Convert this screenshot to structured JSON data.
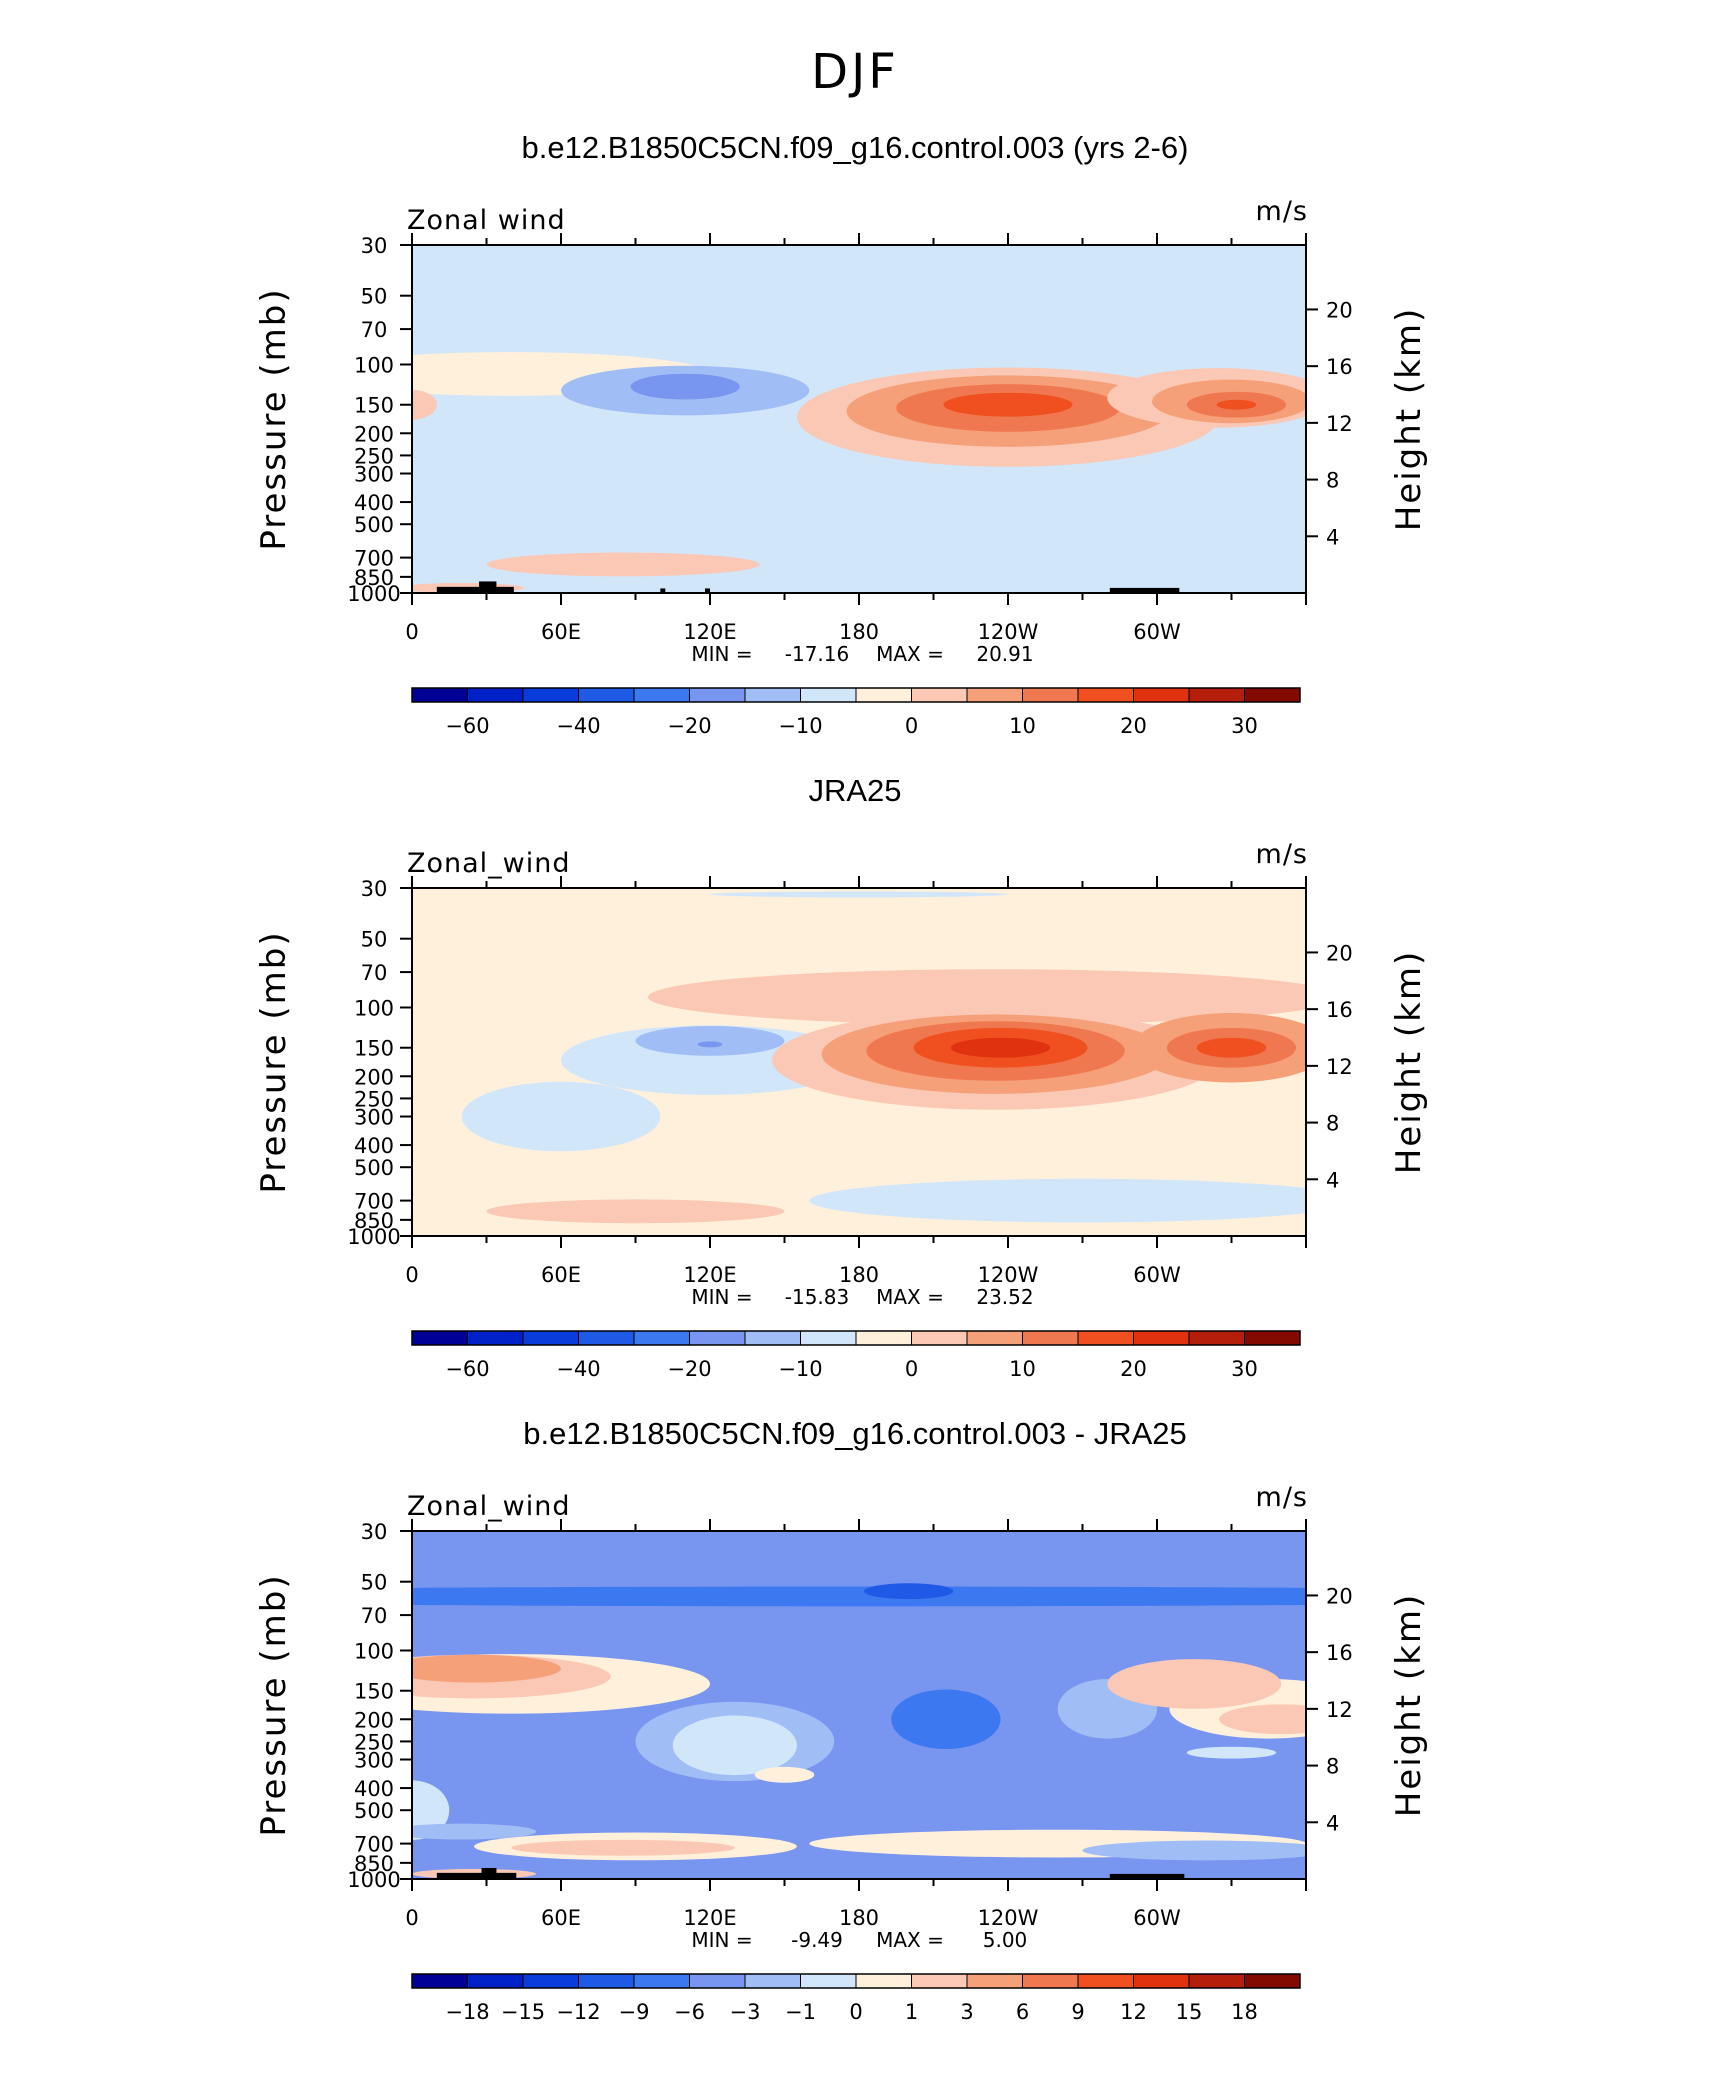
{
  "figure_title": "DJF",
  "colors": {
    "full_palette": [
      "#000096",
      "#0020c8",
      "#0a3cdc",
      "#1e5ae6",
      "#3c78f0",
      "#7896f0",
      "#a0bef5",
      "#d2e6fa",
      "#fff0dc",
      "#fac8b4",
      "#f5a078",
      "#f07850",
      "#f05020",
      "#e13210",
      "#b41e0a",
      "#820a00"
    ],
    "diff_palette": [
      "#000096",
      "#0020c8",
      "#0a3cdc",
      "#1e5ae6",
      "#3c78f0",
      "#7896f0",
      "#a0bef5",
      "#d2e6fa",
      "#fff0dc",
      "#fac8b4",
      "#f5a078",
      "#f07850",
      "#f05020",
      "#e13210",
      "#b41e0a",
      "#820a00"
    ]
  },
  "chart_data": [
    {
      "type": "heatmap",
      "title": "b.e12.B1850C5CN.f09_g16.control.003 (yrs 2-6)",
      "left_label": "Zonal wind",
      "units": "m/s",
      "ylabel": "Pressure  (mb)",
      "ylabel_right": "Height  (km)",
      "x_ticks": [
        "0",
        "60E",
        "120E",
        "180",
        "120W",
        "60W"
      ],
      "y_ticks": [
        "30",
        "50",
        "70",
        "100",
        "150",
        "200",
        "250",
        "300",
        "400",
        "500",
        "700",
        "850",
        "1000"
      ],
      "height_ticks": [
        "20",
        "16",
        "12",
        "8",
        "4"
      ],
      "stats": {
        "min_label": "MIN =",
        "min": "-17.16",
        "max_label": "MAX =",
        "max": "20.91"
      },
      "colorbar_labels": [
        "−60",
        "−40",
        "−20",
        "−10",
        "0",
        "10",
        "20",
        "30"
      ],
      "palette": "full",
      "background_level": 7,
      "blobs": [
        {
          "lon": 180,
          "p": 40,
          "rx": 360,
          "rlogp": 0.22,
          "level": 7
        },
        {
          "lon": 40,
          "p": 110,
          "rx": 80,
          "rlogp": 0.22,
          "level": 8
        },
        {
          "lon": 0,
          "p": 150,
          "rx": 10,
          "rlogp": 0.15,
          "level": 9
        },
        {
          "lon": 110,
          "p": 130,
          "rx": 50,
          "rlogp": 0.25,
          "level": 6
        },
        {
          "lon": 110,
          "p": 125,
          "rx": 22,
          "rlogp": 0.13,
          "level": 5
        },
        {
          "lon": 50,
          "p": 300,
          "rx": 40,
          "rlogp": 0.35,
          "level": 7
        },
        {
          "lon": 240,
          "p": 170,
          "rx": 85,
          "rlogp": 0.5,
          "level": 9
        },
        {
          "lon": 240,
          "p": 160,
          "rx": 65,
          "rlogp": 0.36,
          "level": 10
        },
        {
          "lon": 240,
          "p": 155,
          "rx": 45,
          "rlogp": 0.24,
          "level": 11
        },
        {
          "lon": 240,
          "p": 150,
          "rx": 26,
          "rlogp": 0.12,
          "level": 12
        },
        {
          "lon": 325,
          "p": 140,
          "rx": 45,
          "rlogp": 0.3,
          "level": 9
        },
        {
          "lon": 330,
          "p": 145,
          "rx": 32,
          "rlogp": 0.22,
          "level": 10
        },
        {
          "lon": 332,
          "p": 150,
          "rx": 20,
          "rlogp": 0.13,
          "level": 11
        },
        {
          "lon": 332,
          "p": 150,
          "rx": 8,
          "rlogp": 0.05,
          "level": 12
        },
        {
          "lon": 85,
          "p": 750,
          "rx": 55,
          "rlogp": 0.12,
          "level": 9
        },
        {
          "lon": 20,
          "p": 950,
          "rx": 25,
          "rlogp": 0.05,
          "level": 9
        },
        {
          "lon": 220,
          "p": 900,
          "rx": 60,
          "rlogp": 0.07,
          "level": 7
        }
      ],
      "topography": [
        {
          "lon0": 10,
          "lon1": 41,
          "pmin": 940
        },
        {
          "lon0": 27,
          "lon1": 34,
          "pmin": 890
        },
        {
          "lon0": 100,
          "lon1": 102,
          "pmin": 955
        },
        {
          "lon0": 118,
          "lon1": 120,
          "pmin": 955
        },
        {
          "lon0": 281,
          "lon1": 309,
          "pmin": 950
        }
      ]
    },
    {
      "type": "heatmap",
      "title": "JRA25",
      "left_label": "Zonal_wind",
      "units": "m/s",
      "ylabel": "Pressure  (mb)",
      "ylabel_right": "Height  (km)",
      "x_ticks": [
        "0",
        "60E",
        "120E",
        "180",
        "120W",
        "60W"
      ],
      "y_ticks": [
        "30",
        "50",
        "70",
        "100",
        "150",
        "200",
        "250",
        "300",
        "400",
        "500",
        "700",
        "850",
        "1000"
      ],
      "height_ticks": [
        "20",
        "16",
        "12",
        "8",
        "4"
      ],
      "stats": {
        "min_label": "MIN =",
        "min": "-15.83",
        "max_label": "MAX =",
        "max": "23.52"
      },
      "colorbar_labels": [
        "−60",
        "−40",
        "−20",
        "−10",
        "0",
        "10",
        "20",
        "30"
      ],
      "palette": "full",
      "background_level": 8,
      "blobs": [
        {
          "lon": 180,
          "p": 32,
          "rx": 60,
          "rlogp": 0.03,
          "level": 7
        },
        {
          "lon": 60,
          "p": 300,
          "rx": 40,
          "rlogp": 0.35,
          "level": 7
        },
        {
          "lon": 120,
          "p": 170,
          "rx": 60,
          "rlogp": 0.35,
          "level": 7
        },
        {
          "lon": 120,
          "p": 140,
          "rx": 30,
          "rlogp": 0.15,
          "level": 6
        },
        {
          "lon": 120,
          "p": 145,
          "rx": 5,
          "rlogp": 0.03,
          "level": 5
        },
        {
          "lon": 270,
          "p": 700,
          "rx": 110,
          "rlogp": 0.22,
          "level": 7
        },
        {
          "lon": 235,
          "p": 90,
          "rx": 140,
          "rlogp": 0.28,
          "level": 9
        },
        {
          "lon": 235,
          "p": 170,
          "rx": 90,
          "rlogp": 0.5,
          "level": 9
        },
        {
          "lon": 235,
          "p": 160,
          "rx": 70,
          "rlogp": 0.4,
          "level": 10
        },
        {
          "lon": 235,
          "p": 155,
          "rx": 52,
          "rlogp": 0.3,
          "level": 11
        },
        {
          "lon": 237,
          "p": 150,
          "rx": 35,
          "rlogp": 0.2,
          "level": 12
        },
        {
          "lon": 237,
          "p": 150,
          "rx": 20,
          "rlogp": 0.1,
          "level": 13
        },
        {
          "lon": 330,
          "p": 150,
          "rx": 40,
          "rlogp": 0.35,
          "level": 10
        },
        {
          "lon": 330,
          "p": 150,
          "rx": 26,
          "rlogp": 0.2,
          "level": 11
        },
        {
          "lon": 330,
          "p": 150,
          "rx": 14,
          "rlogp": 0.1,
          "level": 12
        },
        {
          "lon": 90,
          "p": 780,
          "rx": 60,
          "rlogp": 0.12,
          "level": 9
        }
      ],
      "topography": []
    },
    {
      "type": "heatmap",
      "title": "b.e12.B1850C5CN.f09_g16.control.003 - JRA25",
      "left_label": "Zonal_wind",
      "units": "m/s",
      "ylabel": "Pressure  (mb)",
      "ylabel_right": "Height  (km)",
      "x_ticks": [
        "0",
        "60E",
        "120E",
        "180",
        "120W",
        "60W"
      ],
      "y_ticks": [
        "30",
        "50",
        "70",
        "100",
        "150",
        "200",
        "250",
        "300",
        "400",
        "500",
        "700",
        "850",
        "1000"
      ],
      "height_ticks": [
        "20",
        "16",
        "12",
        "8",
        "4"
      ],
      "stats": {
        "min_label": "MIN =",
        "min": "-9.49",
        "max_label": "MAX =",
        "max": "5.00"
      },
      "colorbar_labels": [
        "−18",
        "−15",
        "−12",
        "−9",
        "−6",
        "−3",
        "−1",
        "0",
        "1",
        "3",
        "6",
        "9",
        "12",
        "15",
        "18"
      ],
      "palette": "diff",
      "background_level": 5,
      "blobs": [
        {
          "lon": 180,
          "p": 58,
          "rx": 360,
          "rlogp": 0.1,
          "level": 4
        },
        {
          "lon": 200,
          "p": 55,
          "rx": 18,
          "rlogp": 0.08,
          "level": 3
        },
        {
          "lon": 40,
          "p": 140,
          "rx": 80,
          "rlogp": 0.3,
          "level": 8
        },
        {
          "lon": 25,
          "p": 130,
          "rx": 55,
          "rlogp": 0.22,
          "level": 9
        },
        {
          "lon": 25,
          "p": 120,
          "rx": 35,
          "rlogp": 0.14,
          "level": 10
        },
        {
          "lon": 0,
          "p": 500,
          "rx": 15,
          "rlogp": 0.3,
          "level": 7
        },
        {
          "lon": 130,
          "p": 250,
          "rx": 40,
          "rlogp": 0.4,
          "level": 6
        },
        {
          "lon": 130,
          "p": 260,
          "rx": 25,
          "rlogp": 0.3,
          "level": 7
        },
        {
          "lon": 150,
          "p": 350,
          "rx": 12,
          "rlogp": 0.08,
          "level": 8
        },
        {
          "lon": 215,
          "p": 200,
          "rx": 22,
          "rlogp": 0.3,
          "level": 4
        },
        {
          "lon": 280,
          "p": 180,
          "rx": 20,
          "rlogp": 0.3,
          "level": 6
        },
        {
          "lon": 345,
          "p": 180,
          "rx": 40,
          "rlogp": 0.3,
          "level": 8
        },
        {
          "lon": 315,
          "p": 140,
          "rx": 35,
          "rlogp": 0.25,
          "level": 9
        },
        {
          "lon": 350,
          "p": 200,
          "rx": 25,
          "rlogp": 0.15,
          "level": 9
        },
        {
          "lon": 330,
          "p": 280,
          "rx": 18,
          "rlogp": 0.06,
          "level": 7
        },
        {
          "lon": 260,
          "p": 700,
          "rx": 100,
          "rlogp": 0.14,
          "level": 8
        },
        {
          "lon": 320,
          "p": 750,
          "rx": 50,
          "rlogp": 0.1,
          "level": 6
        },
        {
          "lon": 90,
          "p": 720,
          "rx": 65,
          "rlogp": 0.14,
          "level": 8
        },
        {
          "lon": 85,
          "p": 730,
          "rx": 45,
          "rlogp": 0.08,
          "level": 9
        },
        {
          "lon": 20,
          "p": 620,
          "rx": 30,
          "rlogp": 0.08,
          "level": 6
        },
        {
          "lon": 25,
          "p": 950,
          "rx": 25,
          "rlogp": 0.05,
          "level": 9
        }
      ],
      "topography": [
        {
          "lon0": 10,
          "lon1": 42,
          "pmin": 940
        },
        {
          "lon0": 28,
          "lon1": 34,
          "pmin": 895
        },
        {
          "lon0": 281,
          "lon1": 311,
          "pmin": 950
        }
      ]
    }
  ]
}
